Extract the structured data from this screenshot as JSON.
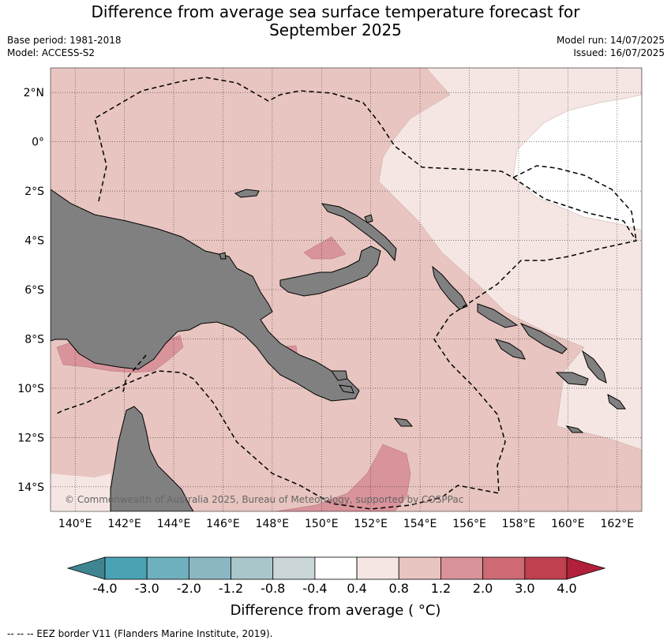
{
  "title_line1": "Difference from average sea surface temperature forecast for",
  "title_line2": "September 2025",
  "base_period": "Base period: 1981-2018",
  "model": "Model: ACCESS-S2",
  "model_run": "Model run: 14/07/2025",
  "issued": "Issued: 16/07/2025",
  "copyright": "© Commonwealth of Australia 2025, Bureau of Meteorology, supported by COSPPac",
  "map": {
    "lon_range": [
      139,
      163
    ],
    "lat_range": [
      -15,
      3
    ],
    "lon_ticks": [
      "140°E",
      "142°E",
      "144°E",
      "146°E",
      "148°E",
      "150°E",
      "152°E",
      "154°E",
      "156°E",
      "158°E",
      "160°E",
      "162°E"
    ],
    "lat_ticks": [
      "2°N",
      "0°",
      "2°S",
      "4°S",
      "6°S",
      "8°S",
      "10°S",
      "12°S",
      "14°S"
    ],
    "grid": true,
    "land_color": "#808080",
    "eez_style": "dashed"
  },
  "colorbar": {
    "title": "Difference from average ( °C)",
    "tick_labels": [
      "-4.0",
      "-3.0",
      "-2.0",
      "-1.2",
      "-0.8",
      "-0.4",
      "0.4",
      "0.8",
      "1.2",
      "2.0",
      "3.0",
      "4.0"
    ],
    "colors": [
      "#3f8591",
      "#4aa3b5",
      "#6eb0be",
      "#8bb7c2",
      "#a9c6cb",
      "#cbd6d8",
      "#ffffff",
      "#f5e6e3",
      "#e8c5c0",
      "#d9939a",
      "#cd6a74",
      "#c0404f",
      "#b0203a"
    ]
  },
  "footer": "--  --  -- EEZ border V11 (Flanders Marine Institute, 2019)."
}
